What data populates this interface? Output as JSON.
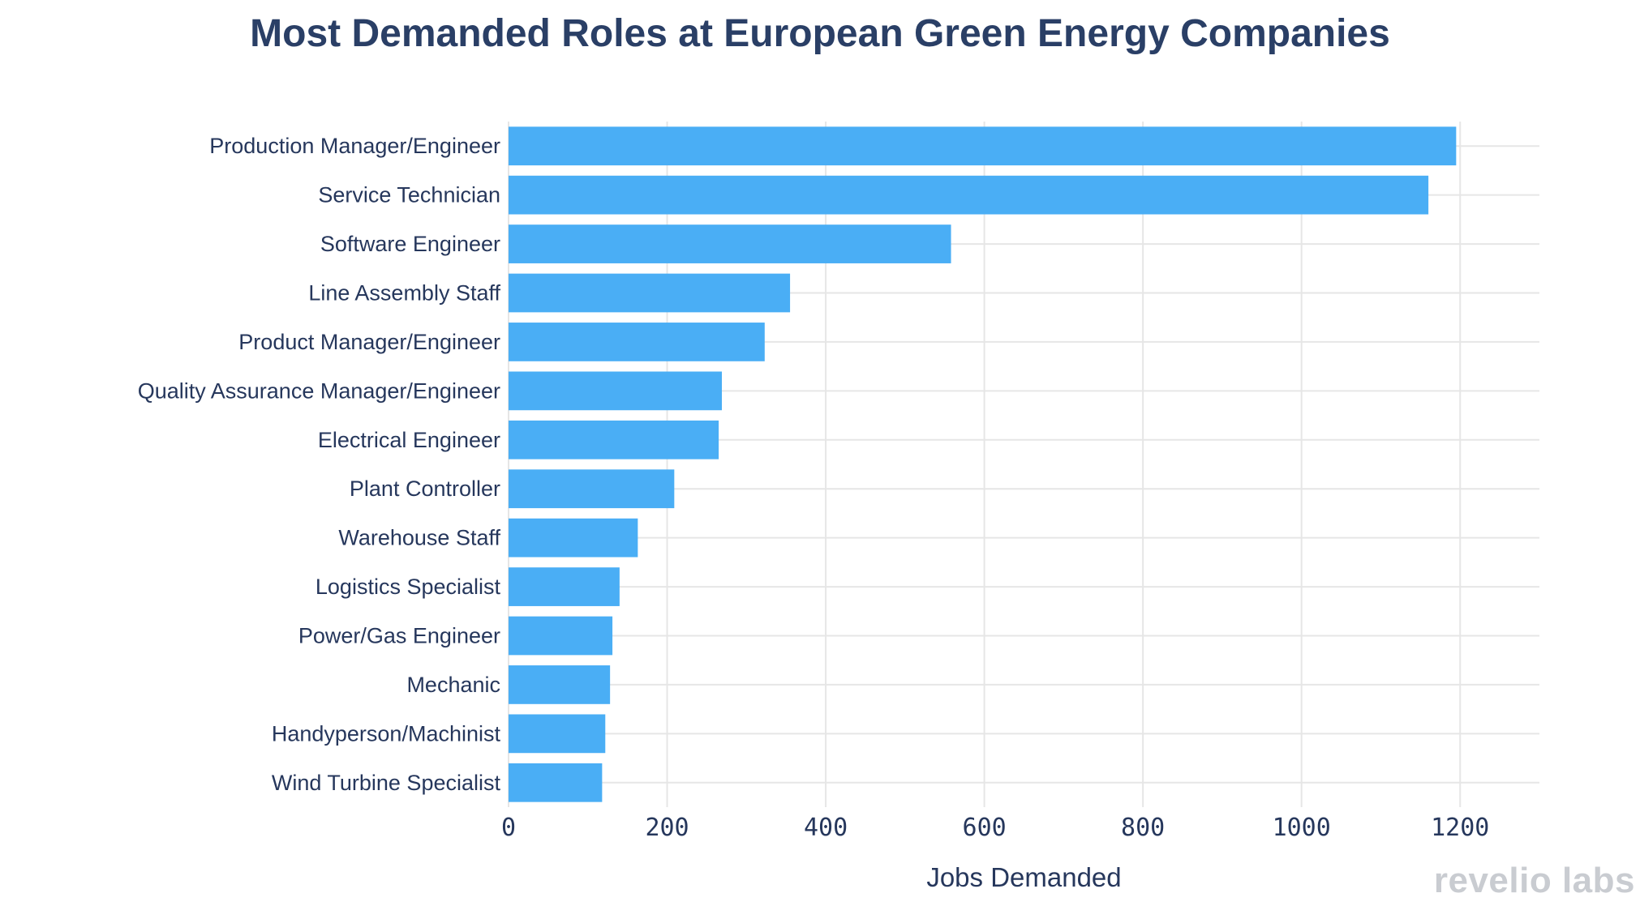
{
  "chart_data": {
    "type": "bar",
    "orientation": "horizontal",
    "title": "Most Demanded Roles at European Green Energy Companies",
    "xlabel": "Jobs Demanded",
    "ylabel": "",
    "xlim": [
      0,
      1300
    ],
    "xticks": [
      0,
      200,
      400,
      600,
      800,
      1000,
      1200
    ],
    "grid": true,
    "bar_color": "#4aaef5",
    "categories": [
      "Production Manager/Engineer",
      "Service Technician",
      "Software Engineer",
      "Line Assembly Staff",
      "Product Manager/Engineer",
      "Quality Assurance Manager/Engineer",
      "Electrical Engineer",
      "Plant Controller",
      "Warehouse Staff",
      "Logistics Specialist",
      "Power/Gas Engineer",
      "Mechanic",
      "Handyperson/Machinist",
      "Wind Turbine Specialist"
    ],
    "values": [
      1195,
      1160,
      558,
      355,
      323,
      269,
      265,
      209,
      163,
      140,
      131,
      128,
      122,
      118
    ]
  },
  "branding": {
    "logo_text": "revelio labs",
    "logo_color": "#c9ccd1"
  }
}
